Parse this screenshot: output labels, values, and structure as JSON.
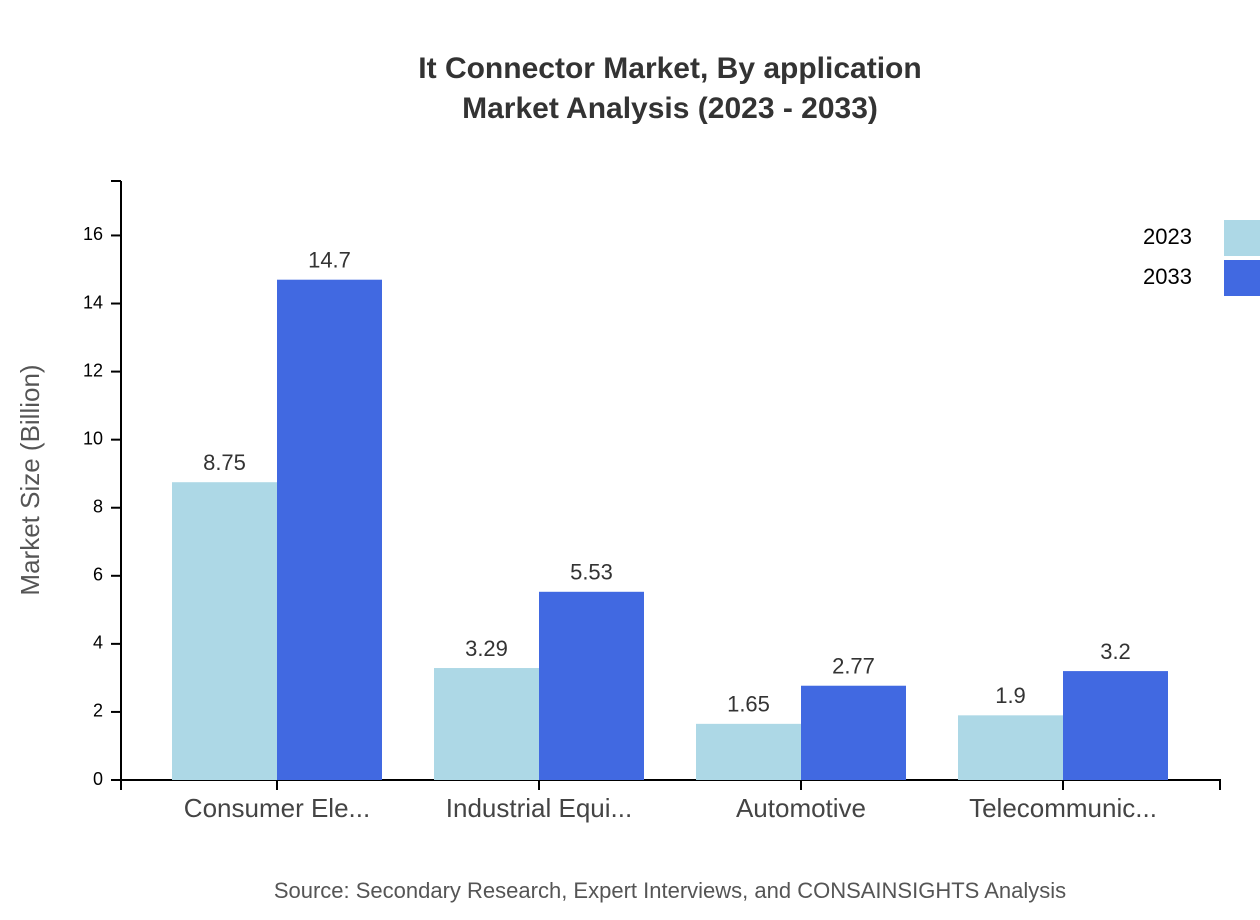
{
  "chart_data": {
    "type": "bar",
    "title": "It Connector Market, By application",
    "subtitle": "Market Analysis (2023 - 2033)",
    "y_label": "Market Size (Billion)",
    "source": "Source: Secondary Research, Expert Interviews, and CONSAINSIGHTS Analysis",
    "categories": [
      "Consumer Ele...",
      "Industrial Equi...",
      "Automotive",
      "Telecommunic..."
    ],
    "series": [
      {
        "name": "2023",
        "color": "#add8e6",
        "values": [
          8.75,
          3.29,
          1.65,
          1.9
        ]
      },
      {
        "name": "2033",
        "color": "#4169e1",
        "values": [
          14.7,
          5.53,
          2.77,
          3.2
        ]
      }
    ],
    "ylim": [
      0,
      17.6
    ],
    "yticks": [
      0,
      2,
      4,
      6,
      8,
      10,
      12,
      14,
      16
    ],
    "legend": "top-right"
  }
}
